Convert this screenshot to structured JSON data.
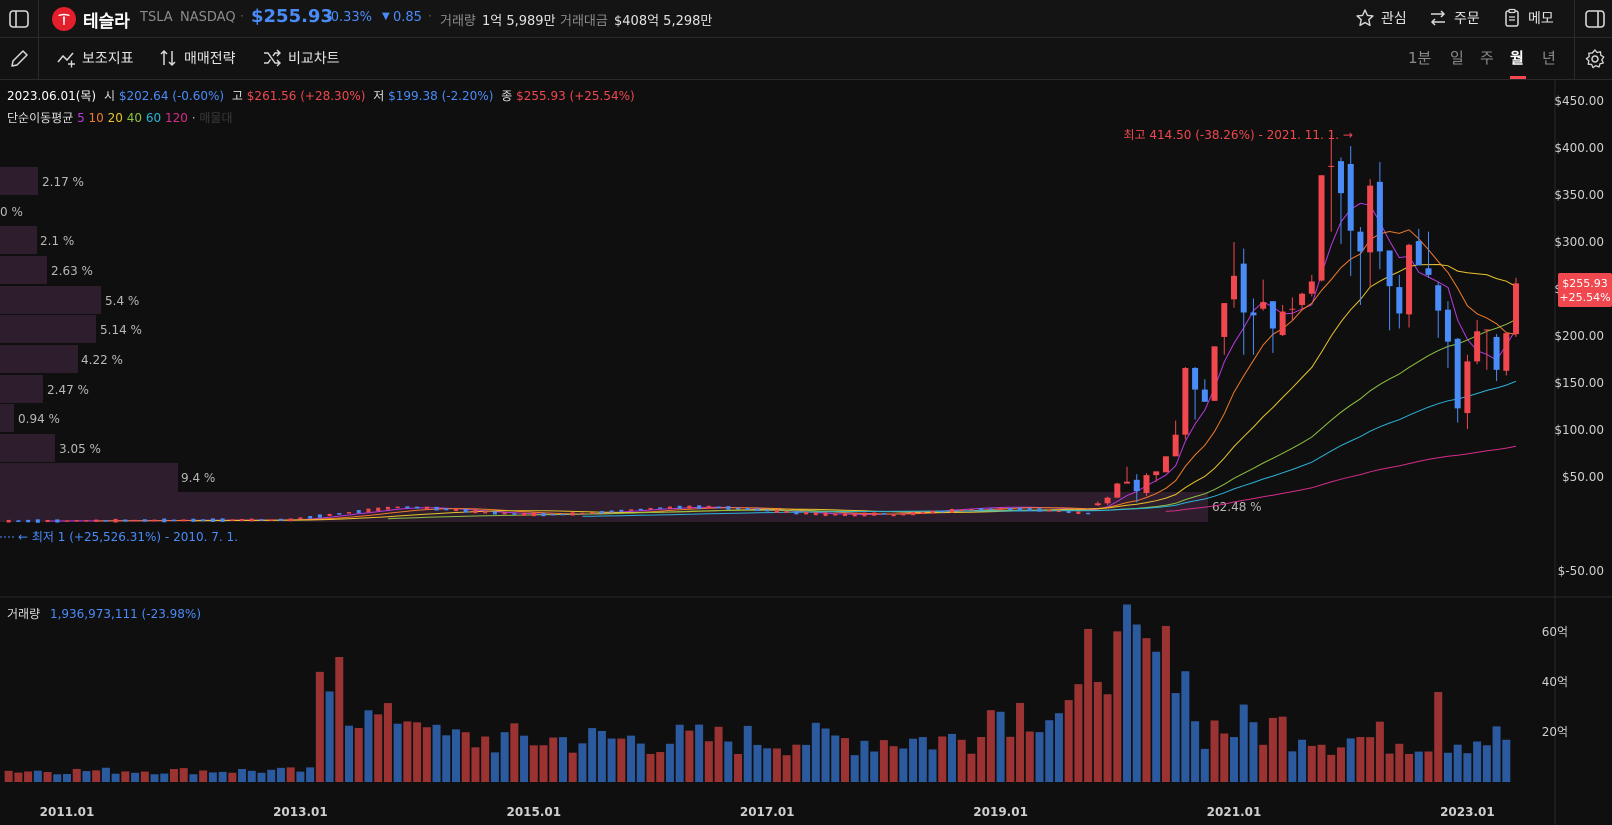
{
  "header": {
    "name": "테슬라",
    "ticker": "TSLA",
    "exchange": "NASDAQ",
    "price": "$255.93",
    "change_pct": "-0.33%",
    "change_abs": "0.85",
    "volume_label": "거래량",
    "volume_value": "1억 5,989만",
    "turnover_label": "거래대금",
    "turnover_value": "$408억 5,298만",
    "actions": {
      "watch": "관심",
      "order": "주문",
      "memo": "메모"
    }
  },
  "toolbar": {
    "indicators": "보조지표",
    "strategy": "매매전략",
    "compare": "비교차트",
    "periods": [
      "1분",
      "일",
      "주",
      "월",
      "년"
    ],
    "active_period": "월"
  },
  "info": {
    "date": "2023.06.01(목)",
    "open_label": "시",
    "open": "$202.64 (-0.60%)",
    "high_label": "고",
    "high": "$261.56 (+28.30%)",
    "low_label": "저",
    "low": "$199.38 (-2.20%)",
    "close_label": "종",
    "close": "$255.93 (+25.54%)",
    "ma_label": "단순이동평균",
    "ma_periods": [
      "5",
      "10",
      "20",
      "40",
      "60",
      "120"
    ],
    "ma_extra": "매물대",
    "max_note": "최고 414.50 (-38.26%) - 2021. 11. 1. →",
    "min_note": "← 최저 1 (+25,526.31%) - 2010. 7. 1.",
    "volume_label": "거래량",
    "volume_value": "1,936,973,111 (-23.98%)",
    "price_tag": "$255.93",
    "price_tag_pct": "+25.54%"
  },
  "colors": {
    "up": "#f0484e",
    "down": "#4a8cf7",
    "ma5": "#b83adf",
    "ma10": "#f07b2a",
    "ma20": "#e8c42a",
    "ma40": "#8fc240",
    "ma60": "#2bb3d8",
    "ma120": "#d42d8a",
    "profile": "#2e1d2d"
  },
  "price_axis": [
    "$450.00",
    "$400.00",
    "$350.00",
    "$300.00",
    "$250.00",
    "$200.00",
    "$150.00",
    "$100.00",
    "$50.00",
    "$-50.00"
  ],
  "volume_axis": [
    "60억",
    "40억",
    "20억"
  ],
  "time_axis": [
    "2011.01",
    "2013.01",
    "2015.01",
    "2017.01",
    "2019.01",
    "2021.01",
    "2023.01"
  ],
  "volume_profile": [
    "2.17 %",
    "0 %",
    "2.1 %",
    "2.63 %",
    "5.4 %",
    "5.14 %",
    "4.22 %",
    "2.47 %",
    "0.94 %",
    "3.05 %",
    "9.4 %",
    "62.48 %"
  ],
  "chart_data": {
    "type": "candlestick",
    "x": [
      "2019.11",
      "2019.12",
      "2020.01",
      "2020.02",
      "2020.03",
      "2020.04",
      "2020.05",
      "2020.06",
      "2020.07",
      "2020.08",
      "2020.09",
      "2020.10",
      "2020.11",
      "2020.12",
      "2021.01",
      "2021.02",
      "2021.03",
      "2021.04",
      "2021.05",
      "2021.06",
      "2021.07",
      "2021.08",
      "2021.09",
      "2021.10",
      "2021.11",
      "2021.12",
      "2022.01",
      "2022.02",
      "2022.03",
      "2022.04",
      "2022.05",
      "2022.06",
      "2022.07",
      "2022.08",
      "2022.09",
      "2022.10",
      "2022.11",
      "2022.12",
      "2023.01",
      "2023.02",
      "2023.03",
      "2023.04",
      "2023.05",
      "2023.06"
    ],
    "open": [
      20,
      22,
      28,
      43,
      47,
      33,
      52,
      55,
      72,
      95,
      166,
      143,
      131,
      199,
      239,
      277,
      225,
      229,
      237,
      201,
      229,
      233,
      245,
      259,
      381,
      386,
      383,
      311,
      289,
      364,
      291,
      252,
      223,
      301,
      272,
      254,
      228,
      197,
      118,
      173,
      206,
      199,
      163,
      202
    ],
    "close": [
      22,
      28,
      43,
      45,
      35,
      52,
      56,
      72,
      95,
      166,
      143,
      130,
      189,
      235,
      264,
      225,
      222,
      236,
      208,
      226,
      229,
      245,
      258,
      371,
      381,
      352,
      312,
      290,
      360,
      290,
      253,
      224,
      297,
      275,
      265,
      227,
      194,
      123,
      173,
      205,
      207,
      164,
      203,
      256
    ],
    "high": [
      24,
      29,
      44,
      61,
      53,
      54,
      56,
      72,
      110,
      167,
      167,
      154,
      189,
      235,
      300,
      293,
      240,
      260,
      237,
      233,
      241,
      246,
      265,
      371,
      414,
      390,
      402,
      316,
      367,
      385,
      291,
      265,
      298,
      314,
      311,
      257,
      237,
      198,
      180,
      217,
      207,
      202,
      204,
      262
    ],
    "low": [
      19,
      20,
      28,
      43,
      23,
      30,
      45,
      55,
      72,
      90,
      111,
      130,
      131,
      180,
      230,
      180,
      180,
      227,
      182,
      200,
      216,
      227,
      242,
      258,
      311,
      298,
      264,
      233,
      252,
      271,
      206,
      208,
      209,
      275,
      262,
      198,
      166,
      108,
      101,
      170,
      164,
      152,
      158,
      199
    ],
    "ylim": [
      -50,
      450
    ],
    "volume_unit": "억",
    "volume_ylim": [
      0,
      80
    ]
  }
}
